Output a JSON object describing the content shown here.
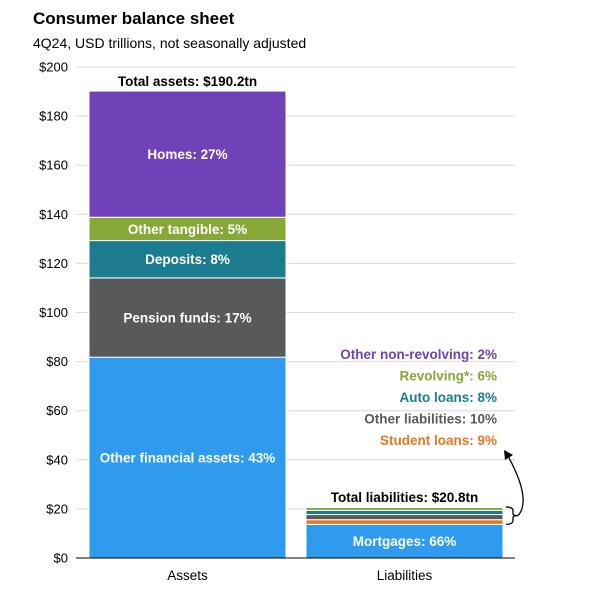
{
  "header": {
    "title": "Consumer balance sheet",
    "subtitle": "4Q24, USD trillions, not seasonally adjusted"
  },
  "chart_data": {
    "type": "bar",
    "stacked": true,
    "categories": [
      "Assets",
      "Liabilities"
    ],
    "ylim": [
      0,
      200
    ],
    "yticks": [
      0,
      20,
      40,
      60,
      80,
      100,
      120,
      140,
      160,
      180,
      200
    ],
    "ytick_labels": [
      "$0",
      "$20",
      "$40",
      "$60",
      "$80",
      "$100",
      "$120",
      "$140",
      "$160",
      "$180",
      "$200"
    ],
    "grid": true,
    "totals": [
      {
        "category": "Assets",
        "label": "Total assets: $190.2tn",
        "value": 190.2
      },
      {
        "category": "Liabilities",
        "label": "Total liabilities: $20.8tn",
        "value": 20.8
      }
    ],
    "assets": [
      {
        "name": "Other financial assets",
        "label": "Other financial assets: 43%",
        "value": 81.8,
        "color": "#2E9BEF"
      },
      {
        "name": "Pension funds",
        "label": "Pension funds: 17%",
        "value": 32.3,
        "color": "#58595B"
      },
      {
        "name": "Deposits",
        "label": "Deposits: 8%",
        "value": 15.2,
        "color": "#1C7C8F"
      },
      {
        "name": "Other tangible",
        "label": "Other tangible: 5%",
        "value": 9.5,
        "color": "#87A838"
      },
      {
        "name": "Homes",
        "label": "Homes: 27%",
        "value": 51.4,
        "color": "#6F42B8"
      }
    ],
    "liabilities": [
      {
        "name": "Mortgages",
        "label": "Mortgages: 66%",
        "value": 13.7,
        "color": "#2E9BEF"
      },
      {
        "name": "Student loans",
        "label": "Student loans: 9%",
        "value": 1.9,
        "color": "#E87722"
      },
      {
        "name": "Other liabilities",
        "label": "Other liabilities: 10%",
        "value": 2.1,
        "color": "#58595B"
      },
      {
        "name": "Auto loans",
        "label": "Auto loans: 8%",
        "value": 1.7,
        "color": "#1C7C8F"
      },
      {
        "name": "Revolving",
        "label": "Revolving*: 6%",
        "value": 1.2,
        "color": "#87A838"
      },
      {
        "name": "Other non-revolving",
        "label": "Other non-revolving: 2%",
        "value": 0.4,
        "color": "#6F42B8"
      }
    ],
    "liability_legend_order": [
      "Other non-revolving",
      "Revolving",
      "Auto loans",
      "Other liabilities",
      "Student loans"
    ],
    "colors": {
      "gridline": "#d9d9d9",
      "axis": "#000000"
    }
  }
}
